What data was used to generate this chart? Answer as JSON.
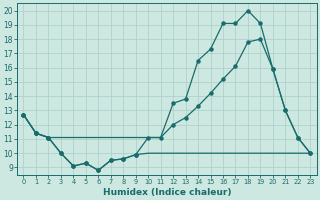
{
  "xlabel": "Humidex (Indice chaleur)",
  "bg_color": "#cce8e0",
  "grid_color": "#aacec8",
  "line_color": "#1a6b6b",
  "xlim": [
    -0.5,
    23.5
  ],
  "ylim": [
    8.5,
    20.5
  ],
  "yticks": [
    9,
    10,
    11,
    12,
    13,
    14,
    15,
    16,
    17,
    18,
    19,
    20
  ],
  "xticks": [
    0,
    1,
    2,
    3,
    4,
    5,
    6,
    7,
    8,
    9,
    10,
    11,
    12,
    13,
    14,
    15,
    16,
    17,
    18,
    19,
    20,
    21,
    22,
    23
  ],
  "line1_x": [
    0,
    1,
    2,
    3,
    4,
    5,
    6,
    7,
    8,
    9,
    10,
    11,
    12,
    13,
    14,
    15,
    16,
    17,
    18,
    19,
    20,
    21,
    22,
    23
  ],
  "line1_y": [
    12.7,
    11.4,
    11.1,
    10.0,
    9.1,
    9.3,
    8.8,
    9.5,
    9.6,
    9.9,
    10.0,
    10.0,
    10.0,
    10.0,
    10.0,
    10.0,
    10.0,
    10.0,
    10.0,
    10.0,
    10.0,
    10.0,
    10.0,
    10.0
  ],
  "line2_x": [
    0,
    1,
    2,
    3,
    4,
    5,
    6,
    7,
    8,
    9,
    10,
    11,
    12,
    13,
    14,
    15,
    16,
    17,
    18,
    19,
    20,
    21,
    22,
    23
  ],
  "line2_y": [
    12.7,
    11.4,
    11.1,
    11.1,
    11.1,
    11.1,
    11.1,
    11.1,
    11.1,
    11.1,
    11.1,
    11.1,
    12.0,
    12.5,
    13.3,
    14.2,
    15.2,
    16.1,
    17.8,
    18.0,
    15.9,
    13.0,
    11.1,
    10.0
  ],
  "line3_x": [
    0,
    1,
    2,
    3,
    4,
    5,
    6,
    7,
    8,
    9,
    10,
    11,
    12,
    13,
    14,
    15,
    16,
    17,
    18,
    19,
    20,
    21,
    22,
    23
  ],
  "line3_y": [
    12.7,
    11.4,
    11.1,
    10.0,
    9.1,
    9.3,
    8.8,
    9.5,
    9.6,
    9.9,
    11.1,
    11.1,
    13.5,
    13.8,
    16.5,
    17.3,
    19.1,
    19.1,
    20.0,
    19.1,
    15.9,
    13.0,
    11.1,
    10.0
  ],
  "line1_markers": [
    0,
    1,
    2,
    3,
    4,
    5,
    6,
    7,
    8,
    9
  ],
  "line2_markers": [
    0,
    1,
    2,
    12,
    13,
    14,
    15,
    16,
    17,
    18,
    19,
    20,
    21,
    22,
    23
  ],
  "line3_markers": [
    0,
    1,
    2,
    3,
    4,
    5,
    6,
    7,
    8,
    9,
    10,
    11,
    12,
    13,
    14,
    15,
    16,
    17,
    18,
    19,
    20,
    21,
    22,
    23
  ]
}
